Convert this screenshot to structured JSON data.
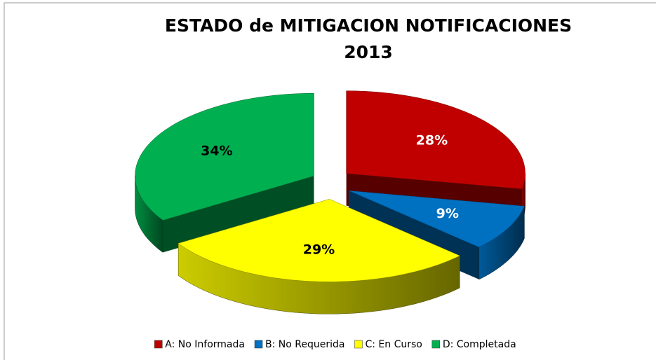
{
  "chart_data": {
    "type": "pie3d",
    "title": "ESTADO de MITIGACION NOTIFICACIONES 2013",
    "categories": [
      "A: No Informada",
      "B: No Requerida",
      "C: En Curso",
      "D: Completada"
    ],
    "values": [
      28,
      9,
      29,
      34
    ],
    "value_labels": [
      "28%",
      "9%",
      "29%",
      "34%"
    ],
    "colors": [
      "#c00000",
      "#0070c0",
      "#ffff00",
      "#00b050"
    ],
    "label_colors": [
      "#ffffff",
      "#ffffff",
      "#000000",
      "#000000"
    ],
    "legend": "bottom"
  }
}
